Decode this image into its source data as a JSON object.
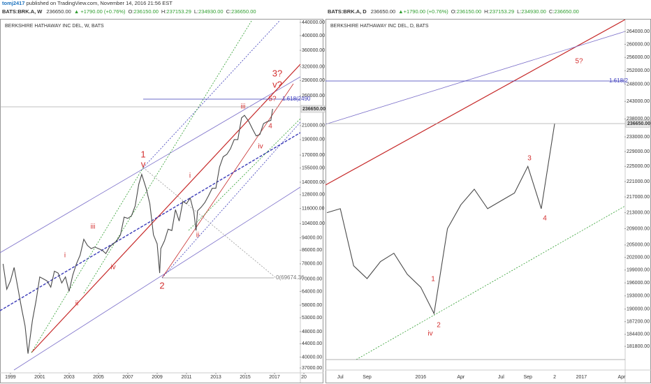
{
  "header": {
    "author": "tomj2417",
    "published": "published on TradingView.com, November 14, 2016 21:56 EST"
  },
  "chart_data": [
    {
      "type": "line",
      "symbol": "BATS:BRK.A, W",
      "price": "236650.00",
      "change": "▲ +1790.00 (+0.76%)",
      "quote": [
        {
          "label": "O:",
          "value": "236150.00"
        },
        {
          "label": "H:",
          "value": "237153.29"
        },
        {
          "label": "L:",
          "value": "234930.00"
        },
        {
          "label": "C:",
          "value": "236650.00"
        }
      ],
      "title": "BERKSHIRE HATHAWAY INC DEL, W, BATS",
      "log": true,
      "grid": false,
      "color": "#4a4a4a",
      "x": [
        1998.5,
        1998.75,
        1999,
        1999.25,
        1999.5,
        1999.75,
        2000,
        2000.2,
        2000.5,
        2000.75,
        2001,
        2001.25,
        2001.5,
        2001.75,
        2002,
        2002.25,
        2002.5,
        2002.75,
        2003,
        2003.25,
        2003.5,
        2003.75,
        2004,
        2004.25,
        2004.5,
        2004.75,
        2005,
        2005.25,
        2005.5,
        2005.75,
        2006,
        2006.25,
        2006.5,
        2006.75,
        2007,
        2007.25,
        2007.5,
        2007.75,
        2007.95,
        2008.25,
        2008.5,
        2008.75,
        2009,
        2009.17,
        2009.25,
        2009.5,
        2009.75,
        2010,
        2010.25,
        2010.5,
        2010.75,
        2011,
        2011.25,
        2011.5,
        2011.65,
        2011.75,
        2012,
        2012.25,
        2012.5,
        2012.75,
        2013,
        2013.25,
        2013.5,
        2013.75,
        2014,
        2014.25,
        2014.5,
        2014.75,
        2014.95,
        2015.25,
        2015.5,
        2015.75,
        2016,
        2016.25,
        2016.5,
        2016.75,
        2016.87
      ],
      "values": [
        78000,
        65000,
        69000,
        76000,
        66000,
        57000,
        50000,
        41000,
        52000,
        60000,
        71000,
        70000,
        69000,
        66000,
        74000,
        73000,
        68000,
        71000,
        64000,
        72000,
        78000,
        83000,
        93000,
        89000,
        87000,
        88000,
        87000,
        86000,
        84000,
        88000,
        90000,
        92000,
        96000,
        109000,
        108000,
        110000,
        118000,
        138000,
        148000,
        134000,
        120000,
        96000,
        90000,
        73000,
        87000,
        92000,
        100000,
        99000,
        115000,
        106000,
        122000,
        120000,
        125000,
        113000,
        99000,
        114000,
        117000,
        121000,
        127000,
        134000,
        134000,
        156000,
        168000,
        171000,
        178000,
        190000,
        190000,
        222000,
        226000,
        216000,
        205000,
        195000,
        197000,
        213000,
        216000,
        218000,
        236650
      ],
      "xlim": [
        1998.29,
        2020.33
      ],
      "xticks": [
        1999,
        2001,
        2003,
        2005,
        2007,
        2009,
        2011,
        2013,
        2015,
        2017,
        {
          "value": 2019,
          "label": "20"
        }
      ],
      "ylim": [
        36450,
        444400
      ],
      "yticks": [
        {
          "value": 440000,
          "label": "440000.00"
        },
        {
          "value": 400000,
          "label": "400000.00"
        },
        {
          "value": 360000,
          "label": "360000.00"
        },
        {
          "value": 320000,
          "label": "320000.00"
        },
        {
          "value": 290000,
          "label": "290000.00"
        },
        {
          "value": 260000,
          "label": "260000.00"
        },
        {
          "value": 210000,
          "label": "210000.00"
        },
        {
          "value": 190000,
          "label": "190000.00"
        },
        {
          "value": 170000,
          "label": "170000.00"
        },
        {
          "value": 155000,
          "label": "155000.00"
        },
        {
          "value": 140000,
          "label": "140000.00"
        },
        {
          "value": 128000,
          "label": "128000.00"
        },
        {
          "value": 116000,
          "label": "116000.00"
        },
        {
          "value": 104000,
          "label": "104000.00"
        },
        {
          "value": 94000,
          "label": "94000.00"
        },
        {
          "value": 86000,
          "label": "86000.00"
        },
        {
          "value": 78000,
          "label": "78000.00"
        },
        {
          "value": 70000,
          "label": "70000.00"
        },
        {
          "value": 64000,
          "label": "64000.00"
        },
        {
          "value": 58000,
          "label": "58000.00"
        },
        {
          "value": 53000,
          "label": "53000.00"
        },
        {
          "value": 48000,
          "label": "48000.00"
        },
        {
          "value": 44000,
          "label": "44000.00"
        },
        {
          "value": 40000,
          "label": "40000.00"
        },
        {
          "value": 37000,
          "label": "37000.00"
        }
      ],
      "last_price": {
        "value": 236650,
        "label": "236650.00"
      },
      "annotations": [
        "1",
        "v",
        "iii",
        "i",
        "ii",
        "iv",
        "2",
        "i",
        "ii",
        "iii",
        "iv",
        "4",
        "5?",
        "3?",
        "v?",
        "1.618(2490",
        "0(69674.36"
      ]
    },
    {
      "type": "line",
      "symbol": "BATS:BRK.A, D",
      "price": "236650.00",
      "change": "▲+1790.00 (+0.76%)",
      "quote": [
        {
          "label": "O:",
          "value": "236150.00"
        },
        {
          "label": "H:",
          "value": "237153.29"
        },
        {
          "label": "L:",
          "value": "234930.00"
        },
        {
          "label": "C:",
          "value": "236650.00"
        }
      ],
      "title": "BERKSHIRE HATHAWAY INC DEL, D, BATS",
      "log": true,
      "grid": false,
      "color": "#4a4a4a",
      "categories": [
        null,
        "Jul",
        null,
        "Sep",
        null,
        null,
        null,
        "2016",
        null,
        null,
        "Apr",
        null,
        null,
        "Jul",
        null,
        "Sep",
        null,
        "2",
        null,
        "2017",
        null,
        null,
        "Apr"
      ],
      "values": [
        213000,
        214000,
        200000,
        197000,
        201000,
        203000,
        198000,
        195000,
        189000,
        209000,
        215000,
        219000,
        214000,
        216000,
        218000,
        225000,
        214000,
        236650,
        null,
        null,
        null,
        null,
        null
      ],
      "ylim": [
        177500,
        267300
      ],
      "yticks": [
        {
          "value": 264000,
          "label": "264000.00"
        },
        {
          "value": 260000,
          "label": "260000.00"
        },
        {
          "value": 256000,
          "label": "256000.00"
        },
        {
          "value": 252000,
          "label": "252000.00"
        },
        {
          "value": 248000,
          "label": "248000.00"
        },
        {
          "value": 243000,
          "label": "243000.00"
        },
        {
          "value": 238000,
          "label": "238000.00"
        },
        {
          "value": 233000,
          "label": "233000.00"
        },
        {
          "value": 229000,
          "label": "229000.00"
        },
        {
          "value": 225000,
          "label": "225000.00"
        },
        {
          "value": 221000,
          "label": "221000.00"
        },
        {
          "value": 217000,
          "label": "217000.00"
        },
        {
          "value": 213000,
          "label": "213000.00"
        },
        {
          "value": 209000,
          "label": "209000.00"
        },
        {
          "value": 205000,
          "label": "205000.00"
        },
        {
          "value": 202000,
          "label": "202000.00"
        },
        {
          "value": 199000,
          "label": "199000.00"
        },
        {
          "value": 196000,
          "label": "196000.00"
        },
        {
          "value": 193000,
          "label": "193000.00"
        },
        {
          "value": 190000,
          "label": "190000.00"
        },
        {
          "value": 187200,
          "label": "187200.00"
        },
        {
          "value": 184400,
          "label": "184400.00"
        },
        {
          "value": 181800,
          "label": "181800.00"
        }
      ],
      "last_price": {
        "value": 236650,
        "label": "236650.00"
      },
      "annotations": [
        "5?",
        "1.618(2",
        "3",
        "4",
        "1",
        "2",
        "iv"
      ]
    }
  ]
}
